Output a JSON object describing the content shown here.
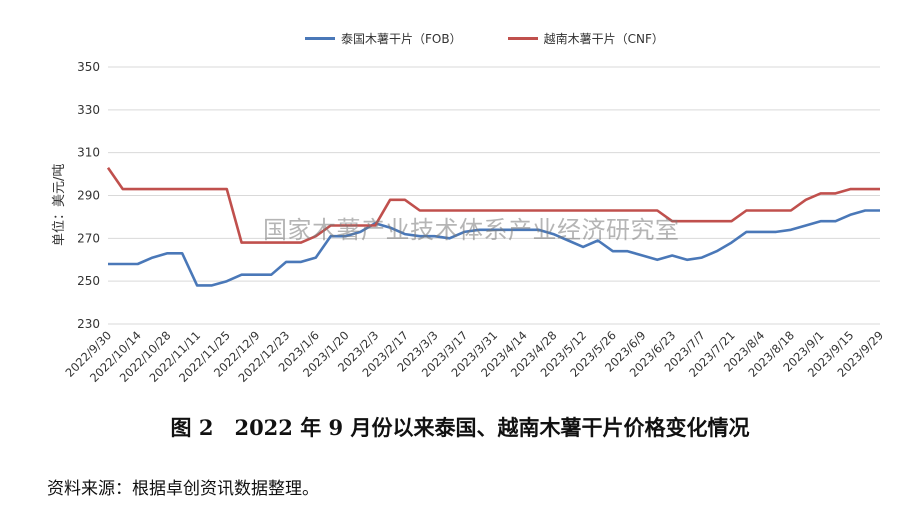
{
  "legend": {
    "fob": "泰国木薯干片（FOB）",
    "cnf": "越南木薯干片（CNF）"
  },
  "y_axis_label": "单位：美元/吨",
  "watermark": "国家木薯产业技术体系产业经济研究室",
  "caption": "图 2　2022 年 9 月份以来泰国、越南木薯干片价格变化情况",
  "source": "资料来源：根据卓创资讯数据整理。",
  "colors": {
    "fob": "#4a78b8",
    "cnf": "#c0504d",
    "grid": "#d9d9d9"
  },
  "chart_data": {
    "type": "line",
    "ylim": [
      230,
      350
    ],
    "yticks": [
      230,
      250,
      270,
      290,
      310,
      330,
      350
    ],
    "grid": true,
    "legend_position": "top",
    "categories": [
      "2022/9/30",
      "2022/10/14",
      "2022/10/28",
      "2022/11/11",
      "2022/11/25",
      "2022/12/9",
      "2022/12/23",
      "2023/1/6",
      "2023/1/20",
      "2023/2/3",
      "2023/2/17",
      "2023/3/3",
      "2023/3/17",
      "2023/3/31",
      "2023/4/14",
      "2023/4/28",
      "2023/5/12",
      "2023/5/26",
      "2023/6/9",
      "2023/6/23",
      "2023/7/7",
      "2023/7/21",
      "2023/8/4",
      "2023/8/18",
      "2023/9/1",
      "2023/9/15",
      "2023/9/29"
    ],
    "x": [
      "2022/9/30",
      "2022/10/7",
      "2022/10/14",
      "2022/10/21",
      "2022/10/28",
      "2022/11/4",
      "2022/11/11",
      "2022/11/18",
      "2022/11/25",
      "2022/12/2",
      "2022/12/9",
      "2022/12/16",
      "2022/12/23",
      "2022/12/30",
      "2023/1/6",
      "2023/1/13",
      "2023/1/20",
      "2023/1/27",
      "2023/2/3",
      "2023/2/10",
      "2023/2/17",
      "2023/2/24",
      "2023/3/3",
      "2023/3/10",
      "2023/3/17",
      "2023/3/24",
      "2023/3/31",
      "2023/4/7",
      "2023/4/14",
      "2023/4/21",
      "2023/4/28",
      "2023/5/5",
      "2023/5/12",
      "2023/5/19",
      "2023/5/26",
      "2023/6/2",
      "2023/6/9",
      "2023/6/16",
      "2023/6/23",
      "2023/6/30",
      "2023/7/7",
      "2023/7/14",
      "2023/7/21",
      "2023/7/28",
      "2023/8/4",
      "2023/8/11",
      "2023/8/18",
      "2023/8/25",
      "2023/9/1",
      "2023/9/8",
      "2023/9/15",
      "2023/9/22",
      "2023/9/29"
    ],
    "series": [
      {
        "name": "泰国木薯干片（FOB）",
        "values": [
          258,
          258,
          258,
          261,
          263,
          263,
          248,
          248,
          250,
          253,
          253,
          253,
          259,
          259,
          261,
          271,
          271,
          273,
          277,
          275,
          272,
          271,
          271,
          270,
          273,
          274,
          274,
          274,
          274,
          274,
          272,
          269,
          266,
          269,
          264,
          264,
          262,
          260,
          262,
          260,
          261,
          264,
          268,
          273,
          273,
          273,
          274,
          276,
          278,
          278,
          281,
          283,
          283
        ]
      },
      {
        "name": "越南木薯干片（CNF）",
        "values": [
          303,
          293,
          293,
          293,
          293,
          293,
          293,
          293,
          293,
          268,
          268,
          268,
          268,
          268,
          271,
          276,
          276,
          276,
          276,
          288,
          288,
          283,
          283,
          283,
          283,
          283,
          283,
          283,
          283,
          283,
          283,
          283,
          283,
          283,
          283,
          283,
          283,
          283,
          278,
          278,
          278,
          278,
          278,
          283,
          283,
          283,
          283,
          288,
          291,
          291,
          293,
          293,
          293
        ]
      }
    ]
  }
}
